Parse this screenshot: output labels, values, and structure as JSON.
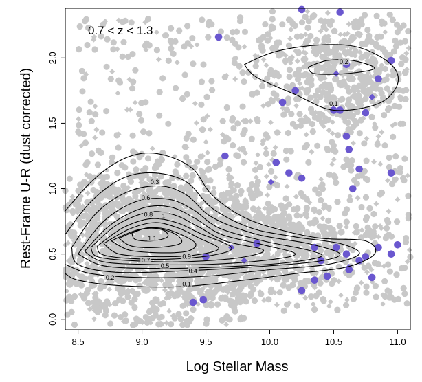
{
  "chart_data": {
    "type": "scatter",
    "title": "",
    "annotation": "0.7 < z < 1.3",
    "xlabel": "Log Stellar Mass",
    "ylabel": "Rest-Frame U-R (dust corrected)",
    "xlim": [
      8.4,
      11.1
    ],
    "ylim": [
      -0.08,
      2.38
    ],
    "x_ticks": [
      "8.5",
      "9.0",
      "9.5",
      "10.0",
      "10.5",
      "11.0"
    ],
    "y_ticks": [
      "0.0",
      "0.5",
      "1.0",
      "1.5",
      "2.0"
    ],
    "grid": false,
    "legend": "none",
    "colors": {
      "background_points": "#c8c8c8",
      "highlight_points": "#6a57cf",
      "contours": "#000000"
    },
    "highlight_points": [
      {
        "x": 9.6,
        "y": 2.16
      },
      {
        "x": 10.25,
        "y": 2.37
      },
      {
        "x": 10.55,
        "y": 2.35
      },
      {
        "x": 10.95,
        "y": 1.98
      },
      {
        "x": 10.6,
        "y": 1.95
      },
      {
        "x": 10.85,
        "y": 1.84
      },
      {
        "x": 10.1,
        "y": 1.66
      },
      {
        "x": 10.2,
        "y": 1.75
      },
      {
        "x": 10.5,
        "y": 1.6
      },
      {
        "x": 10.55,
        "y": 1.6
      },
      {
        "x": 10.75,
        "y": 1.58
      },
      {
        "x": 10.05,
        "y": 1.2
      },
      {
        "x": 10.15,
        "y": 1.12
      },
      {
        "x": 10.6,
        "y": 1.4
      },
      {
        "x": 10.62,
        "y": 1.3
      },
      {
        "x": 10.7,
        "y": 1.15
      },
      {
        "x": 10.65,
        "y": 1.0
      },
      {
        "x": 10.95,
        "y": 1.12
      },
      {
        "x": 9.65,
        "y": 1.25
      },
      {
        "x": 10.25,
        "y": 1.08
      },
      {
        "x": 10.52,
        "y": 0.55
      },
      {
        "x": 10.35,
        "y": 0.55
      },
      {
        "x": 10.6,
        "y": 0.5
      },
      {
        "x": 10.7,
        "y": 0.45
      },
      {
        "x": 10.75,
        "y": 0.48
      },
      {
        "x": 10.85,
        "y": 0.55
      },
      {
        "x": 10.95,
        "y": 0.5
      },
      {
        "x": 11.0,
        "y": 0.57
      },
      {
        "x": 9.5,
        "y": 0.48
      },
      {
        "x": 9.9,
        "y": 0.58
      },
      {
        "x": 10.4,
        "y": 0.45
      },
      {
        "x": 10.45,
        "y": 0.33
      },
      {
        "x": 10.35,
        "y": 0.3
      },
      {
        "x": 10.25,
        "y": 0.22
      },
      {
        "x": 9.4,
        "y": 0.13
      },
      {
        "x": 9.48,
        "y": 0.15
      },
      {
        "x": 10.62,
        "y": 0.38
      },
      {
        "x": 10.8,
        "y": 0.32
      }
    ],
    "highlight_diamonds": [
      {
        "x": 10.52,
        "y": 1.88
      },
      {
        "x": 10.8,
        "y": 1.7
      },
      {
        "x": 10.01,
        "y": 1.05
      },
      {
        "x": 9.7,
        "y": 0.55
      },
      {
        "x": 9.8,
        "y": 0.45
      },
      {
        "x": 10.62,
        "y": 0.4
      }
    ],
    "contours": [
      {
        "label": "0.1",
        "label_at": [
          10.5,
          1.65
        ],
        "points": [
          [
            9.8,
            1.95
          ],
          [
            10.05,
            2.05
          ],
          [
            10.4,
            2.1
          ],
          [
            10.7,
            2.08
          ],
          [
            10.95,
            1.95
          ],
          [
            11.0,
            1.8
          ],
          [
            10.85,
            1.65
          ],
          [
            10.5,
            1.6
          ],
          [
            10.2,
            1.72
          ],
          [
            9.9,
            1.85
          ],
          [
            9.8,
            1.95
          ]
        ]
      },
      {
        "label": "0.2",
        "label_at": [
          10.58,
          1.97
        ],
        "points": [
          [
            10.3,
            1.93
          ],
          [
            10.45,
            1.98
          ],
          [
            10.65,
            1.98
          ],
          [
            10.82,
            1.92
          ],
          [
            10.6,
            1.88
          ],
          [
            10.35,
            1.88
          ],
          [
            10.3,
            1.93
          ]
        ]
      },
      {
        "label": "0.1",
        "label_at": [
          9.35,
          0.27
        ],
        "points": [
          [
            8.4,
            0.83
          ],
          [
            8.6,
            1.05
          ],
          [
            8.8,
            1.2
          ],
          [
            9.0,
            1.27
          ],
          [
            9.2,
            1.25
          ],
          [
            9.4,
            1.15
          ],
          [
            9.55,
            0.95
          ],
          [
            9.8,
            0.78
          ],
          [
            10.1,
            0.68
          ],
          [
            10.4,
            0.62
          ],
          [
            10.75,
            0.6
          ],
          [
            10.82,
            0.5
          ],
          [
            10.6,
            0.4
          ],
          [
            10.2,
            0.35
          ],
          [
            9.8,
            0.3
          ],
          [
            9.3,
            0.25
          ],
          [
            8.8,
            0.26
          ],
          [
            8.5,
            0.3
          ],
          [
            8.4,
            0.35
          ]
        ]
      },
      {
        "label": "0.2",
        "label_at": [
          8.75,
          0.32
        ],
        "points": [
          [
            8.4,
            0.65
          ],
          [
            8.6,
            0.9
          ],
          [
            8.85,
            1.08
          ],
          [
            9.1,
            1.12
          ],
          [
            9.35,
            1.05
          ],
          [
            9.55,
            0.85
          ],
          [
            9.85,
            0.7
          ],
          [
            10.2,
            0.63
          ],
          [
            10.55,
            0.58
          ],
          [
            10.7,
            0.5
          ],
          [
            10.45,
            0.42
          ],
          [
            10.0,
            0.38
          ],
          [
            9.5,
            0.33
          ],
          [
            9.0,
            0.32
          ],
          [
            8.6,
            0.35
          ],
          [
            8.4,
            0.42
          ]
        ]
      },
      {
        "label": "0.3",
        "label_at": [
          9.1,
          1.05
        ],
        "points": [
          [
            8.45,
            0.55
          ],
          [
            8.65,
            0.82
          ],
          [
            8.9,
            0.98
          ],
          [
            9.15,
            1.02
          ],
          [
            9.35,
            0.95
          ],
          [
            9.55,
            0.78
          ],
          [
            9.9,
            0.65
          ],
          [
            10.3,
            0.58
          ],
          [
            10.55,
            0.5
          ],
          [
            10.35,
            0.44
          ],
          [
            9.85,
            0.4
          ],
          [
            9.3,
            0.37
          ],
          [
            8.8,
            0.36
          ],
          [
            8.5,
            0.42
          ],
          [
            8.45,
            0.55
          ]
        ]
      },
      {
        "label": "0.4",
        "label_at": [
          9.4,
          0.37
        ],
        "points": [
          [
            8.5,
            0.5
          ],
          [
            8.7,
            0.75
          ],
          [
            8.95,
            0.9
          ],
          [
            9.2,
            0.92
          ],
          [
            9.4,
            0.84
          ],
          [
            9.6,
            0.7
          ],
          [
            9.95,
            0.6
          ],
          [
            10.3,
            0.53
          ],
          [
            10.4,
            0.48
          ],
          [
            10.1,
            0.43
          ],
          [
            9.6,
            0.4
          ],
          [
            9.1,
            0.39
          ],
          [
            8.7,
            0.41
          ],
          [
            8.5,
            0.5
          ]
        ]
      },
      {
        "label": "0.5",
        "label_at": [
          9.18,
          0.41
        ],
        "points": [
          [
            8.55,
            0.52
          ],
          [
            8.75,
            0.72
          ],
          [
            9.0,
            0.85
          ],
          [
            9.22,
            0.86
          ],
          [
            9.42,
            0.77
          ],
          [
            9.62,
            0.65
          ],
          [
            9.95,
            0.57
          ],
          [
            10.2,
            0.5
          ],
          [
            9.95,
            0.45
          ],
          [
            9.5,
            0.42
          ],
          [
            9.05,
            0.42
          ],
          [
            8.7,
            0.44
          ],
          [
            8.55,
            0.52
          ]
        ]
      },
      {
        "label": "0.6",
        "label_at": [
          9.03,
          0.93
        ],
        "points": [
          [
            8.6,
            0.55
          ],
          [
            8.8,
            0.72
          ],
          [
            9.05,
            0.82
          ],
          [
            9.25,
            0.8
          ],
          [
            9.42,
            0.72
          ],
          [
            9.65,
            0.6
          ],
          [
            9.95,
            0.53
          ],
          [
            9.75,
            0.47
          ],
          [
            9.3,
            0.44
          ],
          [
            8.9,
            0.45
          ],
          [
            8.65,
            0.48
          ],
          [
            8.6,
            0.55
          ]
        ]
      },
      {
        "label": "0.7",
        "label_at": [
          9.03,
          0.45
        ],
        "points": [
          [
            8.65,
            0.56
          ],
          [
            8.85,
            0.7
          ],
          [
            9.07,
            0.77
          ],
          [
            9.27,
            0.74
          ],
          [
            9.45,
            0.66
          ],
          [
            9.7,
            0.55
          ],
          [
            9.55,
            0.49
          ],
          [
            9.2,
            0.46
          ],
          [
            8.85,
            0.47
          ],
          [
            8.68,
            0.5
          ],
          [
            8.65,
            0.56
          ]
        ]
      },
      {
        "label": "0.8",
        "label_at": [
          9.05,
          0.8
        ],
        "points": [
          [
            8.7,
            0.58
          ],
          [
            8.9,
            0.69
          ],
          [
            9.1,
            0.74
          ],
          [
            9.28,
            0.7
          ],
          [
            9.45,
            0.62
          ],
          [
            9.6,
            0.54
          ],
          [
            9.4,
            0.49
          ],
          [
            9.1,
            0.48
          ],
          [
            8.82,
            0.5
          ],
          [
            8.7,
            0.58
          ]
        ]
      },
      {
        "label": "0.9",
        "label_at": [
          9.35,
          0.48
        ],
        "points": [
          [
            8.76,
            0.6
          ],
          [
            8.95,
            0.68
          ],
          [
            9.12,
            0.7
          ],
          [
            9.28,
            0.66
          ],
          [
            9.42,
            0.58
          ],
          [
            9.35,
            0.52
          ],
          [
            9.12,
            0.51
          ],
          [
            8.9,
            0.53
          ],
          [
            8.76,
            0.6
          ]
        ]
      },
      {
        "label": "1",
        "label_at": [
          9.17,
          0.79
        ],
        "points": [
          [
            8.82,
            0.62
          ],
          [
            9.0,
            0.69
          ],
          [
            9.15,
            0.69
          ],
          [
            9.28,
            0.64
          ],
          [
            9.3,
            0.58
          ],
          [
            9.12,
            0.55
          ],
          [
            8.92,
            0.56
          ],
          [
            8.82,
            0.62
          ]
        ]
      },
      {
        "label": "1.1",
        "label_at": [
          9.08,
          0.62
        ],
        "points": [
          [
            8.92,
            0.66
          ],
          [
            9.05,
            0.7
          ],
          [
            9.17,
            0.68
          ],
          [
            9.2,
            0.63
          ],
          [
            9.08,
            0.6
          ],
          [
            8.95,
            0.61
          ],
          [
            8.92,
            0.66
          ]
        ]
      }
    ]
  }
}
